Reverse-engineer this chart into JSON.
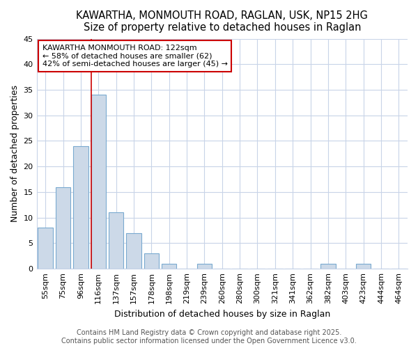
{
  "title": "KAWARTHA, MONMOUTH ROAD, RAGLAN, USK, NP15 2HG",
  "subtitle": "Size of property relative to detached houses in Raglan",
  "xlabel": "Distribution of detached houses by size in Raglan",
  "ylabel": "Number of detached properties",
  "categories": [
    "55sqm",
    "75sqm",
    "96sqm",
    "116sqm",
    "137sqm",
    "157sqm",
    "178sqm",
    "198sqm",
    "219sqm",
    "239sqm",
    "260sqm",
    "280sqm",
    "300sqm",
    "321sqm",
    "341sqm",
    "362sqm",
    "382sqm",
    "403sqm",
    "423sqm",
    "444sqm",
    "464sqm"
  ],
  "values": [
    8,
    16,
    24,
    34,
    11,
    7,
    3,
    1,
    0,
    1,
    0,
    0,
    0,
    0,
    0,
    0,
    1,
    0,
    1,
    0,
    0
  ],
  "bar_color": "#ccd9e8",
  "bar_edge_color": "#7aaad0",
  "red_line_index": 3,
  "annotation_line1": "KAWARTHA MONMOUTH ROAD: 122sqm",
  "annotation_line2": "← 58% of detached houses are smaller (62)",
  "annotation_line3": "42% of semi-detached houses are larger (45) →",
  "annotation_box_color": "#ffffff",
  "annotation_box_edge": "#cc0000",
  "vline_color": "#cc0000",
  "ylim": [
    0,
    45
  ],
  "yticks": [
    0,
    5,
    10,
    15,
    20,
    25,
    30,
    35,
    40,
    45
  ],
  "footer1": "Contains HM Land Registry data © Crown copyright and database right 2025.",
  "footer2": "Contains public sector information licensed under the Open Government Licence v3.0.",
  "background_color": "#ffffff",
  "plot_bg_color": "#ffffff",
  "grid_color": "#c8d4e8",
  "title_fontsize": 10.5,
  "subtitle_fontsize": 9.5,
  "axis_label_fontsize": 9,
  "tick_fontsize": 8,
  "footer_fontsize": 7
}
